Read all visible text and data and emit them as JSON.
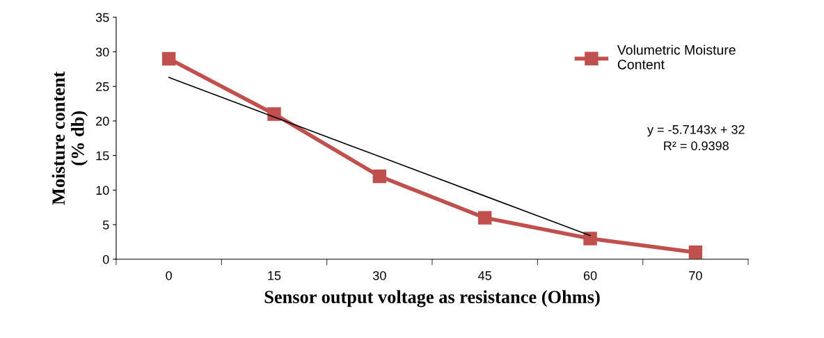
{
  "chart_data": {
    "type": "line",
    "xlabel": "Sensor output voltage as resistance (Ohms)",
    "ylabel": "Moisture content\n(% db)",
    "categories": [
      "0",
      "15",
      "30",
      "45",
      "60",
      "70"
    ],
    "series": [
      {
        "name": "Volumetric Moisture\nContent",
        "color": "#c0504d",
        "values": [
          29,
          21,
          12,
          6,
          3,
          1
        ],
        "marker": "square"
      },
      {
        "type": "line",
        "color": "#000000",
        "values": [
          26.29,
          20.57,
          14.86,
          9.14,
          3.43,
          null
        ],
        "marker": "none"
      }
    ],
    "ylim": [
      0,
      35
    ],
    "yticks": [
      0,
      5,
      10,
      15,
      20,
      25,
      30,
      35
    ],
    "annotations": [
      "y = -5.7143x + 32\nR² = 0.9398"
    ],
    "legend": "right",
    "grid": false
  }
}
